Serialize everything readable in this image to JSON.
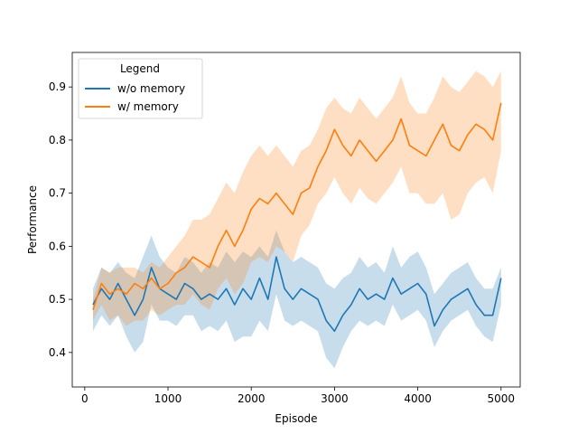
{
  "chart_data": {
    "type": "line",
    "title": "",
    "xlabel": "Episode",
    "ylabel": "Performance",
    "xlim": [
      -150,
      5230
    ],
    "ylim": [
      0.335,
      0.965
    ],
    "xticks": [
      0,
      1000,
      2000,
      3000,
      4000,
      5000
    ],
    "yticks": [
      0.4,
      0.5,
      0.6,
      0.7,
      0.8,
      0.9
    ],
    "grid": false,
    "legend": {
      "title": "Legend",
      "placement": "top-left"
    },
    "series": [
      {
        "name": "w/o memory",
        "color": "#1f77b4",
        "x": [
          100,
          200,
          300,
          400,
          500,
          600,
          700,
          800,
          900,
          1000,
          1100,
          1200,
          1300,
          1400,
          1500,
          1600,
          1700,
          1800,
          1900,
          2000,
          2100,
          2200,
          2300,
          2400,
          2500,
          2600,
          2700,
          2800,
          2900,
          3000,
          3100,
          3200,
          3300,
          3400,
          3500,
          3600,
          3700,
          3800,
          3900,
          4000,
          4100,
          4200,
          4300,
          4400,
          4500,
          4600,
          4700,
          4800,
          4900,
          5000
        ],
        "y": [
          0.49,
          0.52,
          0.5,
          0.53,
          0.5,
          0.47,
          0.5,
          0.56,
          0.52,
          0.51,
          0.5,
          0.53,
          0.52,
          0.5,
          0.51,
          0.5,
          0.52,
          0.49,
          0.52,
          0.5,
          0.54,
          0.5,
          0.58,
          0.52,
          0.5,
          0.52,
          0.51,
          0.5,
          0.46,
          0.44,
          0.47,
          0.49,
          0.52,
          0.5,
          0.51,
          0.5,
          0.54,
          0.51,
          0.52,
          0.53,
          0.51,
          0.45,
          0.48,
          0.5,
          0.51,
          0.52,
          0.49,
          0.47,
          0.47,
          0.54
        ],
        "lower": [
          0.44,
          0.47,
          0.45,
          0.47,
          0.43,
          0.4,
          0.42,
          0.49,
          0.46,
          0.46,
          0.45,
          0.47,
          0.47,
          0.44,
          0.45,
          0.44,
          0.46,
          0.42,
          0.43,
          0.43,
          0.46,
          0.44,
          0.51,
          0.46,
          0.45,
          0.46,
          0.45,
          0.44,
          0.39,
          0.37,
          0.41,
          0.44,
          0.46,
          0.45,
          0.46,
          0.45,
          0.49,
          0.46,
          0.47,
          0.48,
          0.46,
          0.41,
          0.44,
          0.46,
          0.47,
          0.48,
          0.45,
          0.43,
          0.42,
          0.49
        ],
        "upper": [
          0.52,
          0.56,
          0.55,
          0.57,
          0.55,
          0.54,
          0.58,
          0.62,
          0.58,
          0.56,
          0.55,
          0.58,
          0.57,
          0.55,
          0.57,
          0.56,
          0.59,
          0.57,
          0.59,
          0.58,
          0.6,
          0.58,
          0.63,
          0.59,
          0.57,
          0.58,
          0.57,
          0.56,
          0.53,
          0.52,
          0.54,
          0.55,
          0.58,
          0.56,
          0.57,
          0.55,
          0.6,
          0.56,
          0.58,
          0.59,
          0.56,
          0.51,
          0.53,
          0.55,
          0.56,
          0.57,
          0.54,
          0.52,
          0.52,
          0.56
        ]
      },
      {
        "name": "w/ memory",
        "color": "#ff7f0e",
        "x": [
          100,
          200,
          300,
          400,
          500,
          600,
          700,
          800,
          900,
          1000,
          1100,
          1200,
          1300,
          1400,
          1500,
          1600,
          1700,
          1800,
          1900,
          2000,
          2100,
          2200,
          2300,
          2400,
          2500,
          2600,
          2700,
          2800,
          2900,
          3000,
          3100,
          3200,
          3300,
          3400,
          3500,
          3600,
          3700,
          3800,
          3900,
          4000,
          4100,
          4200,
          4300,
          4400,
          4500,
          4600,
          4700,
          4800,
          4900,
          5000
        ],
        "y": [
          0.48,
          0.53,
          0.51,
          0.52,
          0.51,
          0.53,
          0.52,
          0.54,
          0.52,
          0.53,
          0.55,
          0.56,
          0.58,
          0.57,
          0.56,
          0.6,
          0.63,
          0.6,
          0.63,
          0.67,
          0.69,
          0.68,
          0.7,
          0.68,
          0.66,
          0.7,
          0.71,
          0.75,
          0.78,
          0.82,
          0.79,
          0.77,
          0.8,
          0.78,
          0.76,
          0.78,
          0.8,
          0.84,
          0.79,
          0.78,
          0.77,
          0.8,
          0.83,
          0.79,
          0.78,
          0.81,
          0.83,
          0.82,
          0.8,
          0.87
        ],
        "lower": [
          0.46,
          0.49,
          0.46,
          0.47,
          0.45,
          0.46,
          0.46,
          0.48,
          0.47,
          0.48,
          0.49,
          0.49,
          0.51,
          0.49,
          0.48,
          0.52,
          0.54,
          0.51,
          0.53,
          0.57,
          0.58,
          0.57,
          0.6,
          0.59,
          0.57,
          0.62,
          0.64,
          0.68,
          0.7,
          0.73,
          0.7,
          0.68,
          0.71,
          0.69,
          0.68,
          0.7,
          0.72,
          0.75,
          0.7,
          0.7,
          0.68,
          0.68,
          0.7,
          0.65,
          0.66,
          0.7,
          0.72,
          0.73,
          0.7,
          0.78
        ],
        "upper": [
          0.5,
          0.56,
          0.55,
          0.56,
          0.56,
          0.56,
          0.55,
          0.57,
          0.56,
          0.58,
          0.6,
          0.62,
          0.65,
          0.65,
          0.66,
          0.69,
          0.72,
          0.7,
          0.74,
          0.77,
          0.79,
          0.77,
          0.79,
          0.77,
          0.75,
          0.78,
          0.79,
          0.82,
          0.86,
          0.88,
          0.86,
          0.85,
          0.88,
          0.86,
          0.84,
          0.86,
          0.88,
          0.92,
          0.87,
          0.85,
          0.85,
          0.88,
          0.92,
          0.9,
          0.89,
          0.91,
          0.93,
          0.92,
          0.9,
          0.93
        ]
      }
    ]
  }
}
